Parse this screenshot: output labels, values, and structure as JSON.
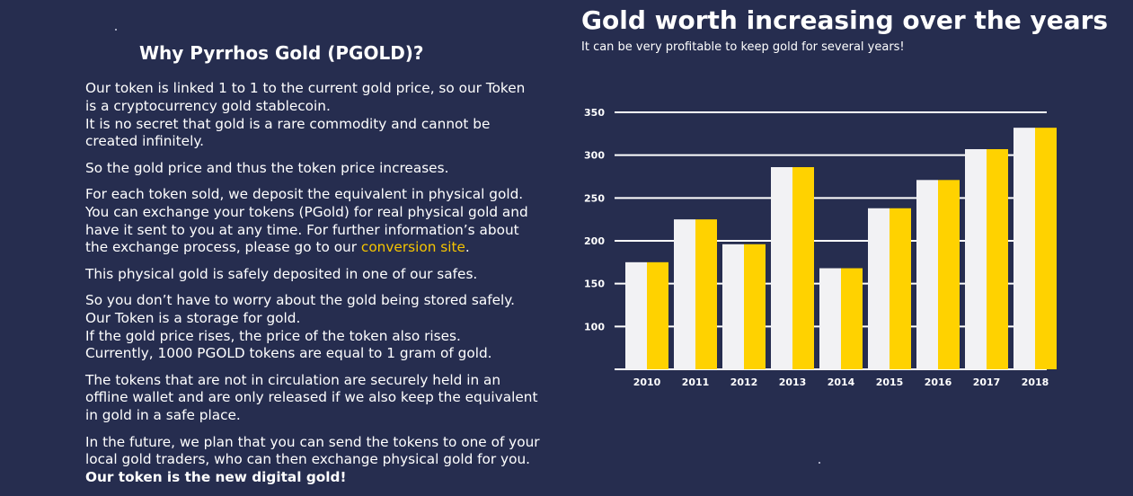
{
  "left": {
    "title": "Why Pyrrhos Gold (PGOLD)?",
    "p1": {
      "l1": "Our token is linked 1 to 1 to the current gold price, so our Token",
      "l2": "is a cryptocurrency gold stablecoin.",
      "l3": "It is no secret that gold is a rare commodity and cannot be",
      "l4": "created infinitely."
    },
    "p2": "So the gold price and thus the token price increases.",
    "p3": {
      "l1": "For each token sold, we deposit the equivalent in physical gold.",
      "l2": "You can exchange your tokens (PGold) for real physical gold and",
      "l3": "have it sent to you at any time. For further information’s about",
      "l4_prefix": "the exchange process, please go to our ",
      "l4_link": "conversion site",
      "l4_suffix": "."
    },
    "p4": "This physical gold is safely deposited in one of our safes.",
    "p5": {
      "l1": "So you don’t have to worry about the gold being stored safely.",
      "l2": "Our Token is a storage for gold.",
      "l3": "If the gold price rises, the price of the token also rises.",
      "l4": "Currently, 1000 PGOLD tokens are equal to 1 gram of gold."
    },
    "p6": {
      "l1": "The tokens that are not in circulation are securely held in an",
      "l2": "offline wallet and are only released if we also keep the equivalent",
      "l3": "in gold in a safe place."
    },
    "p7": {
      "l1": "In the future, we plan that you can send the tokens to one of your",
      "l2": "local gold traders, who can then exchange physical gold for you.",
      "l3": "Our token is the new digital gold!"
    }
  },
  "right": {
    "title": "Gold worth increasing over the years",
    "subtitle": "It can be very profitable to keep gold for several years!"
  },
  "colors": {
    "background": "#262d4f",
    "link": "#f5c400",
    "bar_white": "#f2f2f4",
    "bar_gold": "#ffd200"
  },
  "chart_data": {
    "type": "bar",
    "categories": [
      "2010",
      "2011",
      "2012",
      "2013",
      "2014",
      "2015",
      "2016",
      "2017",
      "2018"
    ],
    "series": [
      {
        "values": [
          175,
          225,
          196,
          286,
          168,
          238,
          271,
          307,
          332
        ],
        "color": "#f2f2f4"
      },
      {
        "values": [
          175,
          225,
          196,
          286,
          168,
          238,
          271,
          307,
          332
        ],
        "color": "#ffd200"
      }
    ],
    "yticks": [
      100,
      150,
      200,
      250,
      300,
      350
    ],
    "ylim": [
      50,
      350
    ],
    "grid": true,
    "legend": "none"
  }
}
